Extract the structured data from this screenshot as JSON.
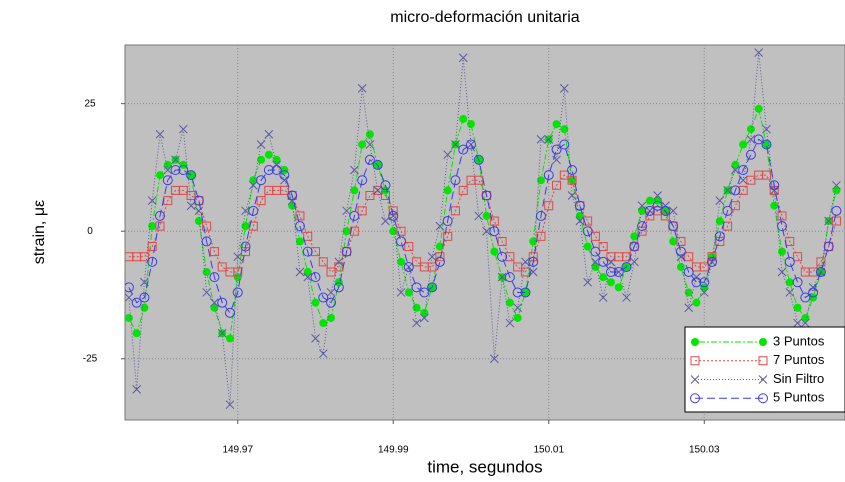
{
  "chart_data": {
    "type": "line",
    "title": "micro-deformación unitaria",
    "xlabel": "time, segundos",
    "ylabel": "strain, με",
    "x": [
      149.956,
      149.957,
      149.958,
      149.959,
      149.96,
      149.961,
      149.962,
      149.963,
      149.964,
      149.965,
      149.966,
      149.967,
      149.968,
      149.969,
      149.97,
      149.971,
      149.972,
      149.973,
      149.974,
      149.975,
      149.976,
      149.977,
      149.978,
      149.979,
      149.98,
      149.981,
      149.982,
      149.983,
      149.984,
      149.985,
      149.986,
      149.987,
      149.988,
      149.989,
      149.99,
      149.991,
      149.992,
      149.993,
      149.994,
      149.995,
      149.996,
      149.997,
      149.998,
      149.999,
      150.0,
      150.001,
      150.002,
      150.003,
      150.004,
      150.005,
      150.006,
      150.007,
      150.008,
      150.009,
      150.01,
      150.011,
      150.012,
      150.013,
      150.014,
      150.015,
      150.016,
      150.017,
      150.018,
      150.019,
      150.02,
      150.021,
      150.022,
      150.023,
      150.024,
      150.025,
      150.026,
      150.027,
      150.028,
      150.029,
      150.03,
      150.031,
      150.032,
      150.033,
      150.034,
      150.035,
      150.036,
      150.037,
      150.038,
      150.039,
      150.04,
      150.041,
      150.042,
      150.043,
      150.044,
      150.045,
      150.046,
      150.047
    ],
    "series": [
      {
        "name": "3 Puntos",
        "color": "#00e600",
        "marker": "filled-circle",
        "dash": "2,2,6,2",
        "values": [
          -17,
          -20,
          -15,
          1,
          11,
          13,
          14,
          13,
          11,
          2,
          -8,
          -15,
          -20,
          -21,
          -9,
          1,
          10,
          14,
          15,
          14,
          12,
          5,
          -2,
          -8,
          -14,
          -18,
          -17,
          -10,
          0,
          8,
          17,
          19,
          13,
          8,
          0,
          -6,
          -12,
          -15,
          -16,
          -11,
          -3,
          8,
          17,
          22,
          21,
          14,
          3,
          -4,
          -9,
          -14,
          -17,
          -12,
          -2,
          10,
          18,
          21,
          20,
          10,
          3,
          -3,
          -7,
          -9,
          -10,
          -11,
          -7,
          -1,
          4,
          6,
          6,
          4,
          -2,
          -7,
          -12,
          -14,
          -11,
          -5,
          2,
          8,
          13,
          17,
          20,
          24,
          17,
          5,
          -4,
          -10,
          -15,
          -17,
          -13,
          -8,
          2,
          8
        ]
      },
      {
        "name": "7 Puntos",
        "color": "#e04848",
        "marker": "open-square",
        "dash": "2,2",
        "values": [
          -5,
          -5,
          -5,
          -3,
          1,
          6,
          8,
          8,
          7,
          6,
          1,
          -4,
          -7,
          -8,
          -8,
          -4,
          1,
          6,
          8,
          8,
          8,
          7,
          3,
          -1,
          -4,
          -6,
          -8,
          -7,
          -4,
          0,
          4,
          7,
          8,
          7,
          4,
          0,
          -3,
          -6,
          -7,
          -7,
          -5,
          -1,
          4,
          8,
          10,
          10,
          7,
          2,
          -2,
          -5,
          -7,
          -8,
          -5,
          -1,
          5,
          9,
          11,
          10,
          5,
          2,
          -1,
          -3,
          -5,
          -5,
          -5,
          -3,
          0,
          3,
          4,
          3,
          1,
          -2,
          -5,
          -7,
          -7,
          -5,
          -2,
          1,
          5,
          8,
          10,
          11,
          11,
          8,
          3,
          -2,
          -5,
          -8,
          -8,
          -6,
          -3,
          2
        ]
      },
      {
        "name": "Sin Filtro",
        "color": "#5a5aa0",
        "marker": "cross",
        "dash": "1,2",
        "values": [
          -13,
          -31,
          -10,
          6,
          19,
          12,
          14,
          20,
          5,
          4,
          -12,
          -14,
          -20,
          -34,
          -5,
          4,
          9,
          17,
          19,
          13,
          10,
          6,
          -8,
          -9,
          -21,
          -24,
          -12,
          -6,
          4,
          12,
          28,
          17,
          8,
          2,
          3,
          -12,
          -7,
          -18,
          -17,
          -5,
          1,
          15,
          17,
          34,
          17,
          3,
          0,
          -25,
          -9,
          -18,
          -15,
          -6,
          -8,
          18,
          18,
          14,
          28,
          7,
          2,
          -10,
          -6,
          -13,
          -6,
          -8,
          -13,
          -6,
          5,
          4,
          7,
          5,
          4,
          -5,
          -15,
          -9,
          -12,
          -6,
          6,
          8,
          12,
          10,
          18,
          35,
          20,
          8,
          -8,
          -12,
          -18,
          -18,
          -11,
          -8,
          2,
          9
        ]
      },
      {
        "name": "5 Puntos",
        "color": "#3c3ce6",
        "marker": "open-circle",
        "dash": "8,4",
        "values": [
          -11,
          -14,
          -13,
          -6,
          3,
          10,
          12,
          12,
          11,
          6,
          -2,
          -9,
          -14,
          -16,
          -12,
          -3,
          4,
          10,
          12,
          12,
          11,
          7,
          1,
          -4,
          -9,
          -13,
          -14,
          -11,
          -4,
          3,
          10,
          14,
          13,
          9,
          3,
          -2,
          -7,
          -11,
          -12,
          -11,
          -6,
          2,
          10,
          16,
          17,
          14,
          7,
          0,
          -5,
          -9,
          -12,
          -12,
          -6,
          3,
          11,
          16,
          17,
          12,
          5,
          0,
          -4,
          -6,
          -8,
          -8,
          -7,
          -3,
          1,
          4,
          5,
          4,
          1,
          -4,
          -8,
          -10,
          -10,
          -6,
          -1,
          4,
          8,
          12,
          15,
          18,
          17,
          9,
          1,
          -6,
          -10,
          -13,
          -12,
          -8,
          -3,
          4
        ]
      }
    ],
    "xlim": [
      149.9555,
      150.0481
    ],
    "ylim": [
      -37,
      36.5
    ],
    "xticks": [
      149.97,
      149.99,
      150.01,
      150.03
    ],
    "yticks": [
      -25,
      0,
      25
    ],
    "grid": true,
    "legend": "lower right"
  }
}
